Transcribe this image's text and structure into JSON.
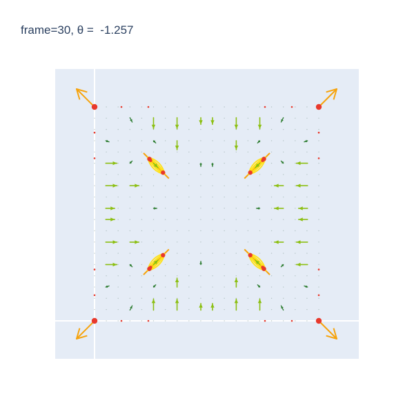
{
  "chart_data": {
    "type": "vector-field",
    "title": "frame=30, θ =  -1.257",
    "xlabel": "",
    "ylabel": "",
    "grid": true,
    "colors": {
      "plot_background": "#e5ecf6",
      "gridline": "#ffffff",
      "large_vector": "#f6a30c",
      "medium_vector": "#8cbf12",
      "small_vector": "#2e7d32",
      "charge_marker": "#e8392c",
      "highlight": "#ffe11a"
    },
    "charges": [
      {
        "x": 0,
        "y": 0
      },
      {
        "x": 1,
        "y": 0
      },
      {
        "x": 0,
        "y": 1
      },
      {
        "x": 1,
        "y": 1
      },
      {
        "x": 0.25,
        "y": 0.25
      },
      {
        "x": 0.75,
        "y": 0.25
      },
      {
        "x": 0.25,
        "y": 0.75
      },
      {
        "x": 0.75,
        "y": 0.75
      }
    ],
    "orbits": [
      {
        "x": 0.275,
        "y": 0.275,
        "toward": [
          -1,
          -1
        ]
      },
      {
        "x": 0.725,
        "y": 0.275,
        "toward": [
          1,
          -1
        ]
      },
      {
        "x": 0.275,
        "y": 0.725,
        "toward": [
          -1,
          1
        ]
      },
      {
        "x": 0.725,
        "y": 0.725,
        "toward": [
          1,
          1
        ]
      }
    ],
    "vectors": [
      {
        "x": 0,
        "y": 0,
        "u": -0.08,
        "v": -0.08,
        "size": "large"
      },
      {
        "x": 1,
        "y": 0,
        "u": 0.08,
        "v": -0.08,
        "size": "large"
      },
      {
        "x": 0,
        "y": 1,
        "u": -0.08,
        "v": 0.08,
        "size": "large"
      },
      {
        "x": 1,
        "y": 1,
        "u": 0.08,
        "v": 0.08,
        "size": "large"
      },
      {
        "x": 0.263,
        "y": 0.05,
        "u": 0,
        "v": 0.05,
        "size": "medium"
      },
      {
        "x": 0.368,
        "y": 0.05,
        "u": 0,
        "v": 0.05,
        "size": "medium"
      },
      {
        "x": 0.632,
        "y": 0.05,
        "u": 0,
        "v": 0.05,
        "size": "medium"
      },
      {
        "x": 0.737,
        "y": 0.05,
        "u": 0,
        "v": 0.05,
        "size": "medium"
      },
      {
        "x": 0.158,
        "y": 0.05,
        "u": 0.01,
        "v": 0.02,
        "size": "small"
      },
      {
        "x": 0.474,
        "y": 0.05,
        "u": 0,
        "v": 0.03,
        "size": "medium"
      },
      {
        "x": 0.526,
        "y": 0.05,
        "u": 0,
        "v": 0.03,
        "size": "medium"
      },
      {
        "x": 0.842,
        "y": 0.05,
        "u": -0.01,
        "v": 0.02,
        "size": "small"
      },
      {
        "x": 0.368,
        "y": 0.158,
        "u": 0,
        "v": 0.04,
        "size": "medium"
      },
      {
        "x": 0.632,
        "y": 0.158,
        "u": 0,
        "v": 0.04,
        "size": "medium"
      },
      {
        "x": 0.263,
        "y": 0.158,
        "u": 0.01,
        "v": 0.01,
        "size": "small"
      },
      {
        "x": 0.737,
        "y": 0.158,
        "u": -0.01,
        "v": 0.01,
        "size": "small"
      },
      {
        "x": 0.05,
        "y": 0.158,
        "u": 0.015,
        "v": 0.005,
        "size": "small"
      },
      {
        "x": 0.95,
        "y": 0.158,
        "u": -0.015,
        "v": 0.005,
        "size": "small"
      },
      {
        "x": 0.05,
        "y": 0.263,
        "u": 0.05,
        "v": 0,
        "size": "medium"
      },
      {
        "x": 0.95,
        "y": 0.263,
        "u": -0.05,
        "v": 0,
        "size": "medium"
      },
      {
        "x": 0.05,
        "y": 0.368,
        "u": 0.05,
        "v": 0,
        "size": "medium"
      },
      {
        "x": 0.95,
        "y": 0.368,
        "u": -0.05,
        "v": 0,
        "size": "medium"
      },
      {
        "x": 0.05,
        "y": 0.474,
        "u": 0.04,
        "v": 0,
        "size": "medium"
      },
      {
        "x": 0.95,
        "y": 0.474,
        "u": -0.04,
        "v": 0,
        "size": "medium"
      },
      {
        "x": 0.158,
        "y": 0.263,
        "u": 0.01,
        "v": -0.01,
        "size": "small"
      },
      {
        "x": 0.842,
        "y": 0.263,
        "u": -0.01,
        "v": -0.01,
        "size": "small"
      },
      {
        "x": 0.158,
        "y": 0.368,
        "u": 0.04,
        "v": 0,
        "size": "medium"
      },
      {
        "x": 0.842,
        "y": 0.368,
        "u": -0.04,
        "v": 0,
        "size": "medium"
      },
      {
        "x": 0.263,
        "y": 0.263,
        "u": 0.02,
        "v": 0.02,
        "size": "medium"
      },
      {
        "x": 0.737,
        "y": 0.263,
        "u": -0.02,
        "v": 0.02,
        "size": "medium"
      },
      {
        "x": 0.474,
        "y": 0.263,
        "u": 0,
        "v": 0.015,
        "size": "small"
      },
      {
        "x": 0.263,
        "y": 0.474,
        "u": 0.015,
        "v": 0,
        "size": "small"
      },
      {
        "x": 0.737,
        "y": 0.474,
        "u": -0.015,
        "v": 0,
        "size": "small"
      },
      {
        "x": 0.842,
        "y": 0.474,
        "u": -0.04,
        "v": 0,
        "size": "medium"
      },
      {
        "x": 0.263,
        "y": 0.95,
        "u": 0,
        "v": -0.05,
        "size": "medium"
      },
      {
        "x": 0.368,
        "y": 0.95,
        "u": 0,
        "v": -0.05,
        "size": "medium"
      },
      {
        "x": 0.632,
        "y": 0.95,
        "u": 0,
        "v": -0.05,
        "size": "medium"
      },
      {
        "x": 0.737,
        "y": 0.95,
        "u": 0,
        "v": -0.05,
        "size": "medium"
      },
      {
        "x": 0.158,
        "y": 0.95,
        "u": 0.01,
        "v": -0.02,
        "size": "small"
      },
      {
        "x": 0.474,
        "y": 0.95,
        "u": 0,
        "v": -0.03,
        "size": "medium"
      },
      {
        "x": 0.526,
        "y": 0.95,
        "u": 0,
        "v": -0.03,
        "size": "medium"
      },
      {
        "x": 0.842,
        "y": 0.95,
        "u": -0.01,
        "v": -0.02,
        "size": "small"
      },
      {
        "x": 0.368,
        "y": 0.842,
        "u": 0,
        "v": -0.04,
        "size": "medium"
      },
      {
        "x": 0.632,
        "y": 0.842,
        "u": 0,
        "v": -0.04,
        "size": "medium"
      },
      {
        "x": 0.263,
        "y": 0.842,
        "u": 0.01,
        "v": -0.01,
        "size": "small"
      },
      {
        "x": 0.737,
        "y": 0.842,
        "u": -0.01,
        "v": -0.01,
        "size": "small"
      },
      {
        "x": 0.05,
        "y": 0.842,
        "u": 0.015,
        "v": -0.005,
        "size": "small"
      },
      {
        "x": 0.95,
        "y": 0.842,
        "u": -0.015,
        "v": -0.005,
        "size": "small"
      },
      {
        "x": 0.05,
        "y": 0.737,
        "u": 0.05,
        "v": 0,
        "size": "medium"
      },
      {
        "x": 0.95,
        "y": 0.737,
        "u": -0.05,
        "v": 0,
        "size": "medium"
      },
      {
        "x": 0.05,
        "y": 0.632,
        "u": 0.05,
        "v": 0,
        "size": "medium"
      },
      {
        "x": 0.95,
        "y": 0.632,
        "u": -0.05,
        "v": 0,
        "size": "medium"
      },
      {
        "x": 0.05,
        "y": 0.526,
        "u": 0.04,
        "v": 0,
        "size": "medium"
      },
      {
        "x": 0.95,
        "y": 0.526,
        "u": -0.04,
        "v": 0,
        "size": "medium"
      },
      {
        "x": 0.158,
        "y": 0.737,
        "u": 0.01,
        "v": 0.01,
        "size": "small"
      },
      {
        "x": 0.842,
        "y": 0.737,
        "u": -0.01,
        "v": 0.01,
        "size": "small"
      },
      {
        "x": 0.158,
        "y": 0.632,
        "u": 0.04,
        "v": 0,
        "size": "medium"
      },
      {
        "x": 0.842,
        "y": 0.632,
        "u": -0.04,
        "v": 0,
        "size": "medium"
      },
      {
        "x": 0.263,
        "y": 0.737,
        "u": 0.02,
        "v": -0.02,
        "size": "medium"
      },
      {
        "x": 0.737,
        "y": 0.737,
        "u": -0.02,
        "v": -0.02,
        "size": "medium"
      },
      {
        "x": 0.474,
        "y": 0.737,
        "u": 0,
        "v": -0.015,
        "size": "small"
      },
      {
        "x": 0.526,
        "y": 0.263,
        "u": 0,
        "v": 0.015,
        "size": "small"
      }
    ]
  }
}
